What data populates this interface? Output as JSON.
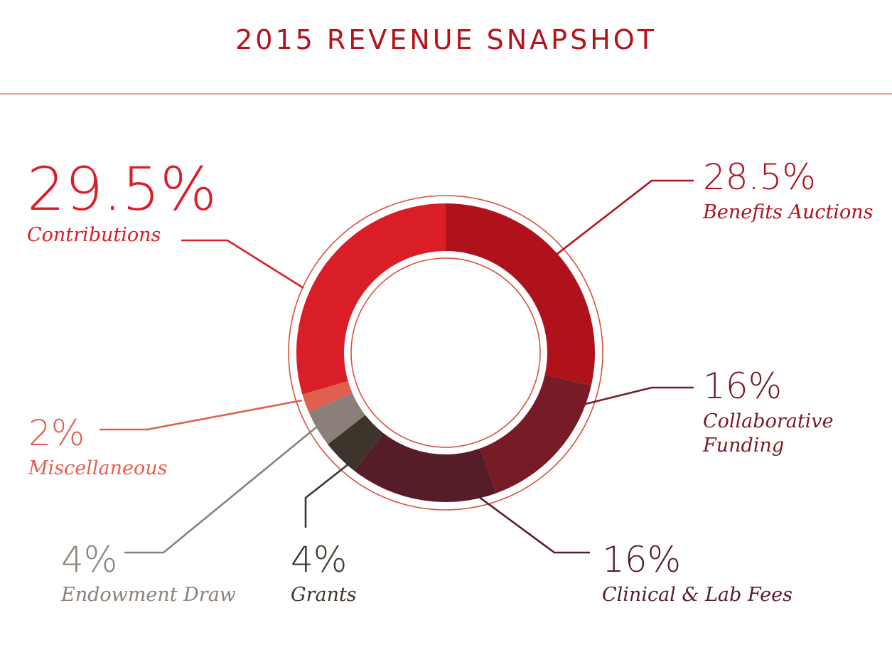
{
  "title": "2015 REVENUE SNAPSHOT",
  "chart_data": {
    "type": "pie",
    "variant": "donut",
    "title": "2015 REVENUE SNAPSHOT",
    "unit": "%",
    "slices": [
      {
        "label": "Benefits Auctions",
        "value": 28.5,
        "display": "28.5%",
        "color": "#b0121b"
      },
      {
        "label": "Collaborative Funding",
        "value": 16,
        "display": "16%",
        "color": "#771b27"
      },
      {
        "label": "Clinical & Lab Fees",
        "value": 16,
        "display": "16%",
        "color": "#561c27"
      },
      {
        "label": "Grants",
        "value": 4,
        "display": "4%",
        "color": "#3d342b"
      },
      {
        "label": "Endowment Draw",
        "value": 4,
        "display": "4%",
        "color": "#8b8079"
      },
      {
        "label": "Miscellaneous",
        "value": 2,
        "display": "2%",
        "color": "#e15f4f"
      },
      {
        "label": "Contributions",
        "value": 29.5,
        "display": "29.5%",
        "color": "#d91e27"
      }
    ],
    "labels": {
      "benefits": {
        "pct": "28.5%",
        "name": "Benefits Auctions"
      },
      "collab": {
        "pct": "16%",
        "name1": "Collaborative",
        "name2": "Funding"
      },
      "clinical": {
        "pct": "16%",
        "name": "Clinical & Lab Fees"
      },
      "grants": {
        "pct": "4%",
        "name": "Grants"
      },
      "endowment": {
        "pct": "4%",
        "name": "Endowment Draw"
      },
      "misc": {
        "pct": "2%",
        "name": "Miscellaneous"
      },
      "contrib": {
        "pct": "29.5%",
        "name": "Contributions"
      }
    }
  },
  "colors": {
    "title": "#b5121b",
    "rule": "#e7a584",
    "ring_outline": "#d9503c"
  }
}
